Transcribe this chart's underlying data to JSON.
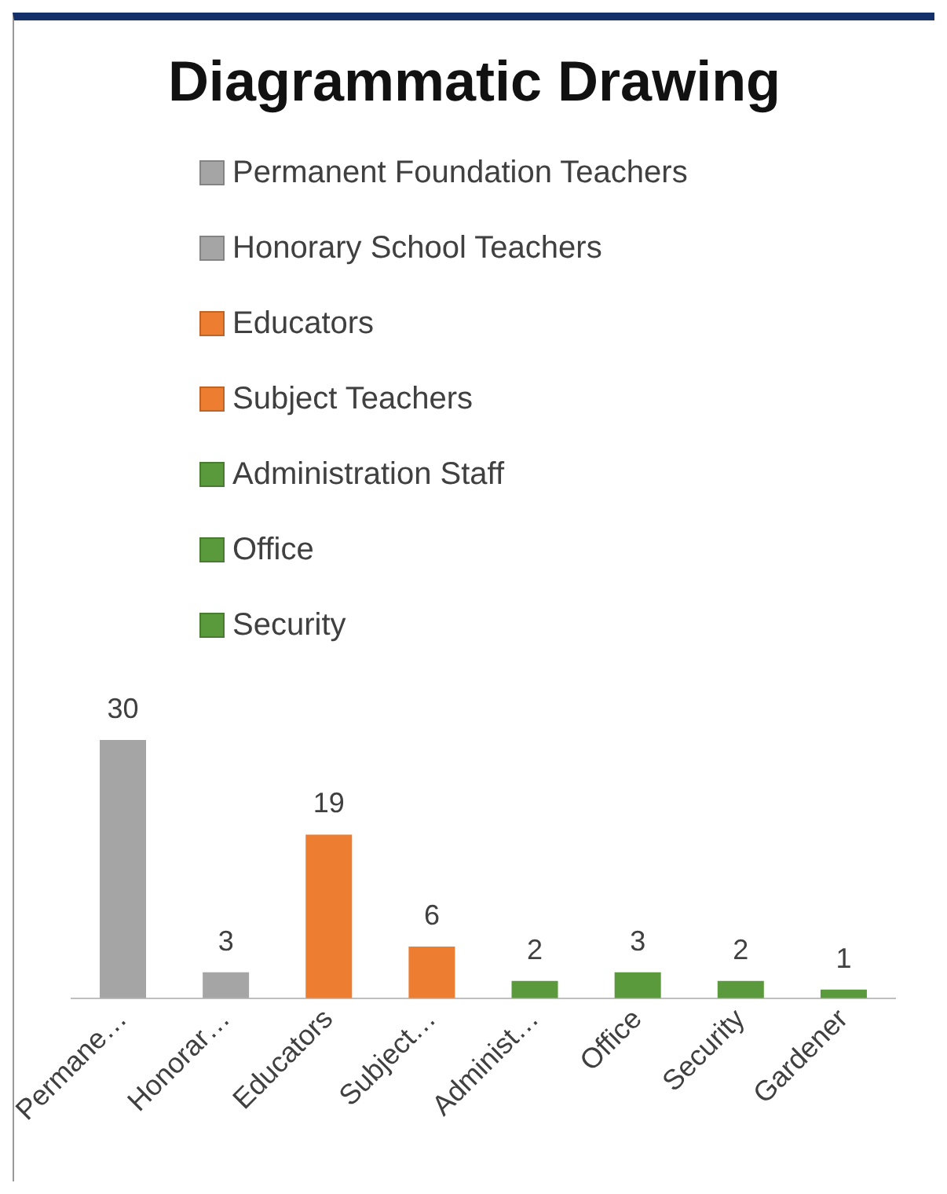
{
  "chart_data": {
    "type": "bar",
    "title": "Diagrammatic Drawing",
    "categories": [
      "Permane…",
      "Honorar…",
      "Educators",
      "Subject…",
      "Administ…",
      "Office",
      "Security",
      "Gardener"
    ],
    "legend": "top",
    "data_labels": true,
    "series": [
      {
        "name": "Permanent Foundation Teachers",
        "color": "#a5a5a5",
        "values": [
          30,
          null,
          null,
          null,
          null,
          null,
          null,
          null
        ]
      },
      {
        "name": "Honorary School Teachers",
        "color": "#a5a5a5",
        "values": [
          null,
          3,
          null,
          null,
          null,
          null,
          null,
          null
        ]
      },
      {
        "name": "Educators",
        "color": "#ed7d31",
        "values": [
          null,
          null,
          19,
          null,
          null,
          null,
          null,
          null
        ]
      },
      {
        "name": "Subject Teachers",
        "color": "#ed7d31",
        "values": [
          null,
          null,
          null,
          6,
          null,
          null,
          null,
          null
        ]
      },
      {
        "name": "Administration Staff",
        "color": "#5b9a3c",
        "values": [
          null,
          null,
          null,
          null,
          2,
          null,
          null,
          null
        ]
      },
      {
        "name": "Office",
        "color": "#5b9a3c",
        "values": [
          null,
          null,
          null,
          null,
          null,
          3,
          null,
          null
        ]
      },
      {
        "name": "Security",
        "color": "#5b9a3c",
        "values": [
          null,
          null,
          null,
          null,
          null,
          null,
          2,
          null
        ]
      },
      {
        "color": "#5b9a3c",
        "values": [
          null,
          null,
          null,
          null,
          null,
          null,
          null,
          1
        ]
      }
    ]
  }
}
